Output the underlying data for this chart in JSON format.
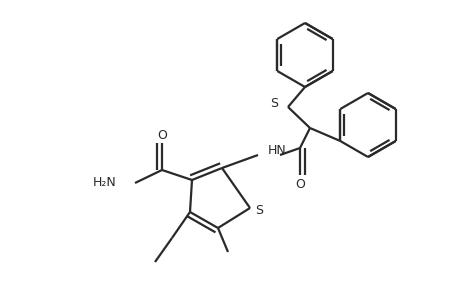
{
  "bg_color": "#ffffff",
  "line_color": "#2a2a2a",
  "line_width": 1.6,
  "doff": 0.012,
  "figsize": [
    4.6,
    3.0
  ],
  "dpi": 100,
  "xlim": [
    0,
    460
  ],
  "ylim": [
    0,
    300
  ]
}
